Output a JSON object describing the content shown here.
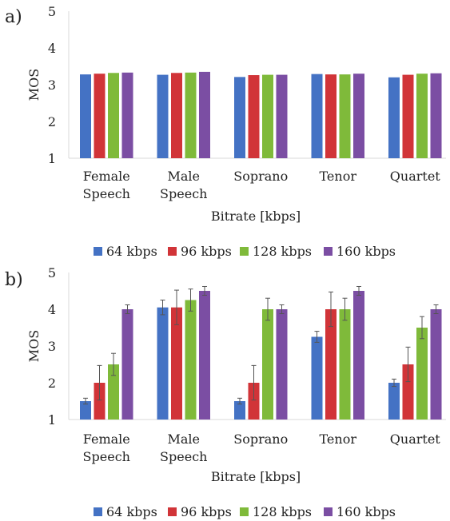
{
  "x_title": "Bitrate [kbps]",
  "legend_position": "bottom",
  "colors": {
    "s64": "#4472c4",
    "s96": "#d13438",
    "s128": "#7fba3a",
    "s160": "#7b4ea3",
    "axis": "#d9d9d9",
    "error": "#555555"
  },
  "chart_data": [
    {
      "type": "bar",
      "panel_label": "a)",
      "xlabel": "Bitrate [kbps]",
      "ylabel": "MOS",
      "ylim": [
        1,
        5
      ],
      "yticks": [
        "1",
        "2",
        "3",
        "4",
        "5"
      ],
      "grid": false,
      "legend": "bottom",
      "categories": [
        [
          "Female",
          "Speech"
        ],
        [
          "Male",
          "Speech"
        ],
        [
          "Soprano"
        ],
        [
          "Tenor"
        ],
        [
          "Quartet"
        ]
      ],
      "series": [
        {
          "name": "64 kbps",
          "color": "#4472c4",
          "values": [
            3.28,
            3.27,
            3.21,
            3.29,
            3.2
          ]
        },
        {
          "name": "96 kbps",
          "color": "#d13438",
          "values": [
            3.3,
            3.32,
            3.26,
            3.28,
            3.27
          ]
        },
        {
          "name": "128 kbps",
          "color": "#7fba3a",
          "values": [
            3.32,
            3.33,
            3.27,
            3.28,
            3.3
          ]
        },
        {
          "name": "160 kbps",
          "color": "#7b4ea3",
          "values": [
            3.33,
            3.35,
            3.27,
            3.3,
            3.31
          ]
        }
      ]
    },
    {
      "type": "bar",
      "panel_label": "b)",
      "xlabel": "Bitrate [kbps]",
      "ylabel": "MOS",
      "ylim": [
        1,
        5
      ],
      "yticks": [
        "1",
        "2",
        "3",
        "4",
        "5"
      ],
      "grid": false,
      "legend": "bottom",
      "categories": [
        [
          "Female",
          "Speech"
        ],
        [
          "Male",
          "Speech"
        ],
        [
          "Soprano"
        ],
        [
          "Tenor"
        ],
        [
          "Quartet"
        ]
      ],
      "series": [
        {
          "name": "64 kbps",
          "color": "#4472c4",
          "values": [
            1.5,
            4.05,
            1.5,
            3.25,
            2.0
          ],
          "errors": [
            0.08,
            0.2,
            0.08,
            0.15,
            0.1
          ]
        },
        {
          "name": "96 kbps",
          "color": "#d13438",
          "values": [
            2.0,
            4.05,
            2.0,
            4.0,
            2.5
          ],
          "errors": [
            0.47,
            0.47,
            0.47,
            0.47,
            0.47
          ]
        },
        {
          "name": "128 kbps",
          "color": "#7fba3a",
          "values": [
            2.5,
            4.25,
            4.0,
            4.0,
            3.5
          ],
          "errors": [
            0.3,
            0.3,
            0.3,
            0.3,
            0.3
          ]
        },
        {
          "name": "160 kbps",
          "color": "#7b4ea3",
          "values": [
            4.0,
            4.5,
            4.0,
            4.5,
            4.0
          ],
          "errors": [
            0.12,
            0.12,
            0.12,
            0.12,
            0.12
          ]
        }
      ]
    }
  ]
}
